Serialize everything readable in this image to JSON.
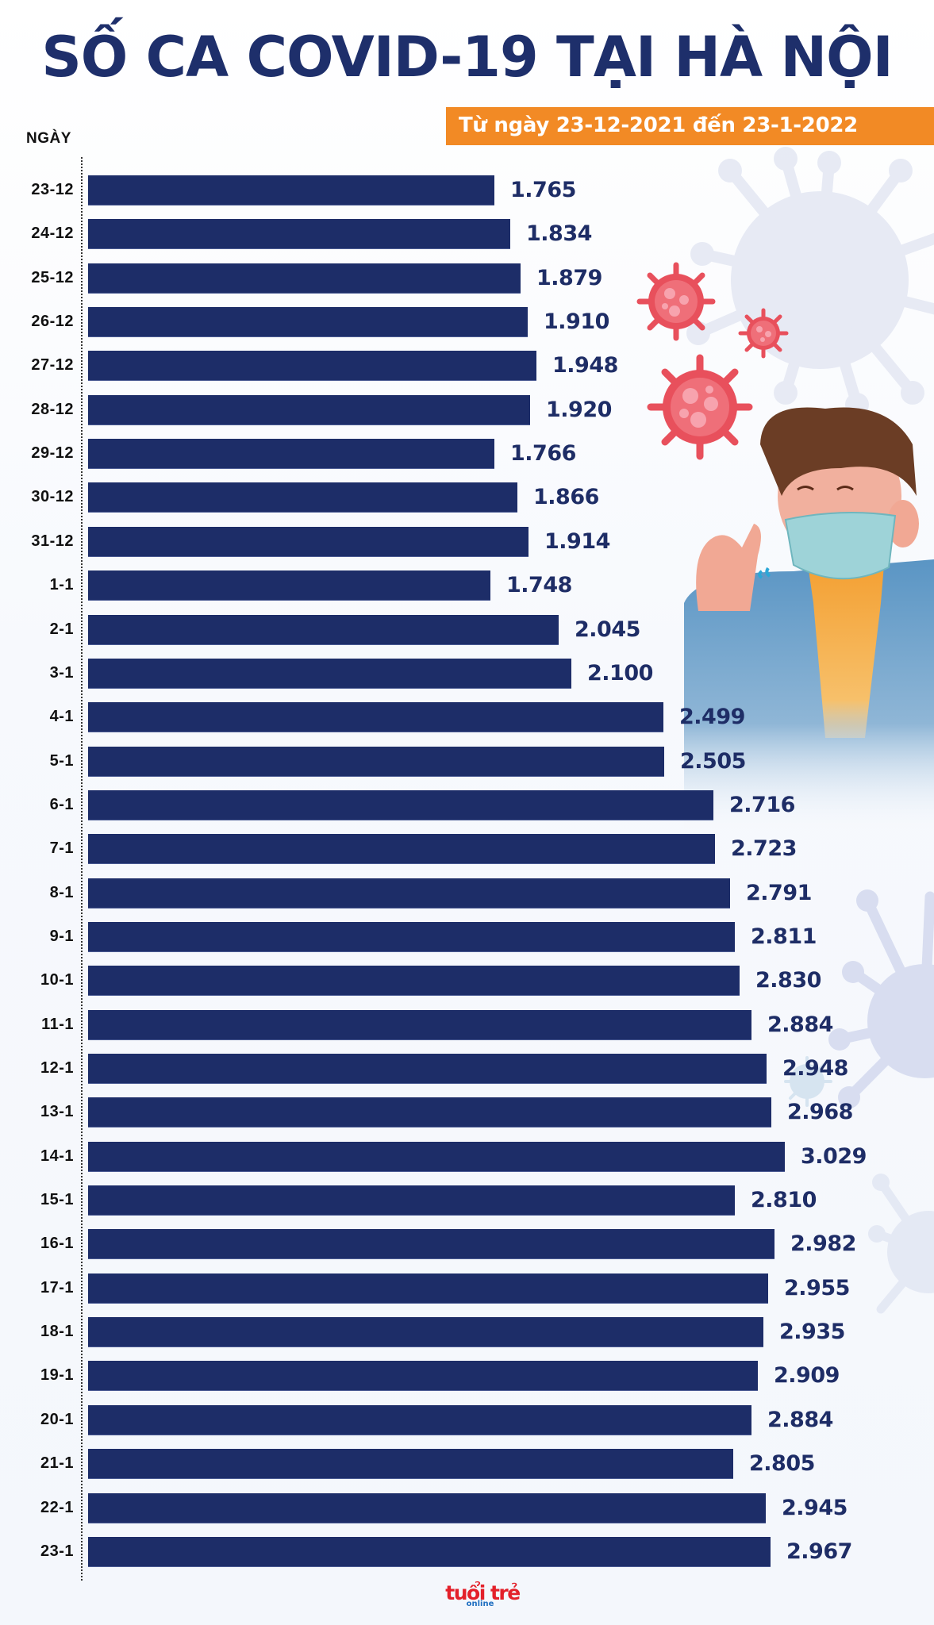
{
  "header": {
    "title": "SỐ CA COVID-19 TẠI HÀ NỘI",
    "subtitle": "Từ ngày 23-12-2021 đến 23-1-2022",
    "axis_label": "NGÀY"
  },
  "footer": {
    "logo_text": "tuổi trẻ",
    "logo_sub": "online"
  },
  "colors": {
    "title": "#1e2f6b",
    "bar": "#1d2d68",
    "banner": "#f28a25",
    "value_text": "#1e2d66",
    "logo_red": "#e3202a",
    "logo_blue": "#1f6fc0"
  },
  "chart_data": {
    "type": "bar",
    "orientation": "horizontal",
    "title": "SỐ CA COVID-19 TẠI HÀ NỘI",
    "subtitle": "Từ ngày 23-12-2021 đến 23-1-2022",
    "xlabel": "",
    "ylabel": "NGÀY",
    "grid": false,
    "legend": null,
    "categories": [
      "23-12",
      "24-12",
      "25-12",
      "26-12",
      "27-12",
      "28-12",
      "29-12",
      "30-12",
      "31-12",
      "1-1",
      "2-1",
      "3-1",
      "4-1",
      "5-1",
      "6-1",
      "7-1",
      "8-1",
      "9-1",
      "10-1",
      "11-1",
      "12-1",
      "13-1",
      "14-1",
      "15-1",
      "16-1",
      "17-1",
      "18-1",
      "19-1",
      "20-1",
      "21-1",
      "22-1",
      "23-1"
    ],
    "values": [
      1765,
      1834,
      1879,
      1910,
      1948,
      1920,
      1766,
      1866,
      1914,
      1748,
      2045,
      2100,
      2499,
      2505,
      2716,
      2723,
      2791,
      2811,
      2830,
      2884,
      2948,
      2968,
      3029,
      2810,
      2982,
      2955,
      2935,
      2909,
      2884,
      2805,
      2945,
      2967
    ],
    "value_labels": [
      "1.765",
      "1.834",
      "1.879",
      "1.910",
      "1.948",
      "1.920",
      "1.766",
      "1.866",
      "1.914",
      "1.748",
      "2.045",
      "2.100",
      "2.499",
      "2.505",
      "2.716",
      "2.723",
      "2.791",
      "2.811",
      "2.830",
      "2.884",
      "2.948",
      "2.968",
      "3.029",
      "2.810",
      "2.982",
      "2.955",
      "2.935",
      "2.909",
      "2.884",
      "2.805",
      "2.945",
      "2.967"
    ]
  }
}
